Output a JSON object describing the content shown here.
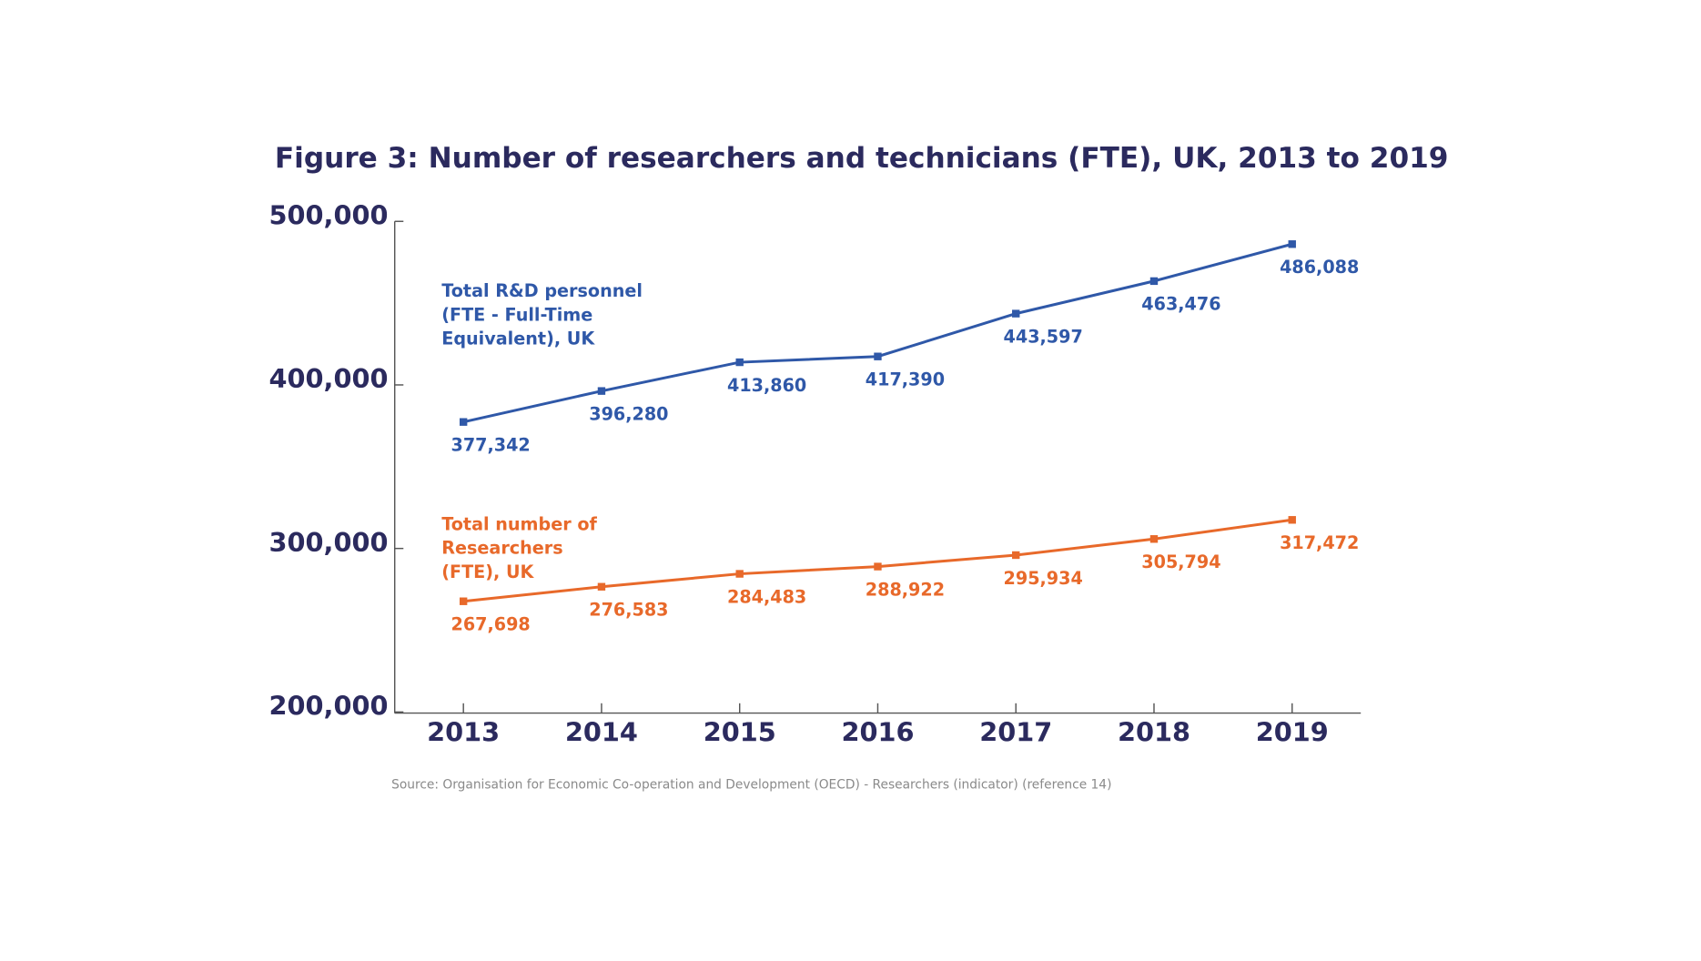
{
  "chart_data": {
    "type": "line",
    "title": "Figure 3: Number of researchers and technicians (FTE), UK, 2013 to 2019",
    "categories": [
      "2013",
      "2014",
      "2015",
      "2016",
      "2017",
      "2018",
      "2019"
    ],
    "series": [
      {
        "name": "Total R&D personnel (FTE - Full-Time Equivalent), UK",
        "color": "#2f58a8",
        "values": [
          377342,
          396280,
          413860,
          417390,
          443597,
          463476,
          486088
        ],
        "value_labels": [
          "377,342",
          "396,280",
          "413,860",
          "417,390",
          "443,597",
          "463,476",
          "486,088"
        ]
      },
      {
        "name": "Total number of Researchers (FTE), UK",
        "color": "#e8692a",
        "values": [
          267698,
          276583,
          284483,
          288922,
          295934,
          305794,
          317472
        ],
        "value_labels": [
          "267,698",
          "276,583",
          "284,483",
          "288,922",
          "295,934",
          "305,794",
          "317,472"
        ]
      }
    ],
    "ylim": [
      200000,
      500000
    ],
    "yticks": [
      {
        "value": 200000,
        "label": "200,000"
      },
      {
        "value": 300000,
        "label": "300,000"
      },
      {
        "value": 400000,
        "label": "400,000"
      },
      {
        "value": 500000,
        "label": "500,000"
      }
    ],
    "source": "Source: Organisation for Economic Co-operation and Development (OECD) - Researchers (indicator) (reference 14)"
  }
}
